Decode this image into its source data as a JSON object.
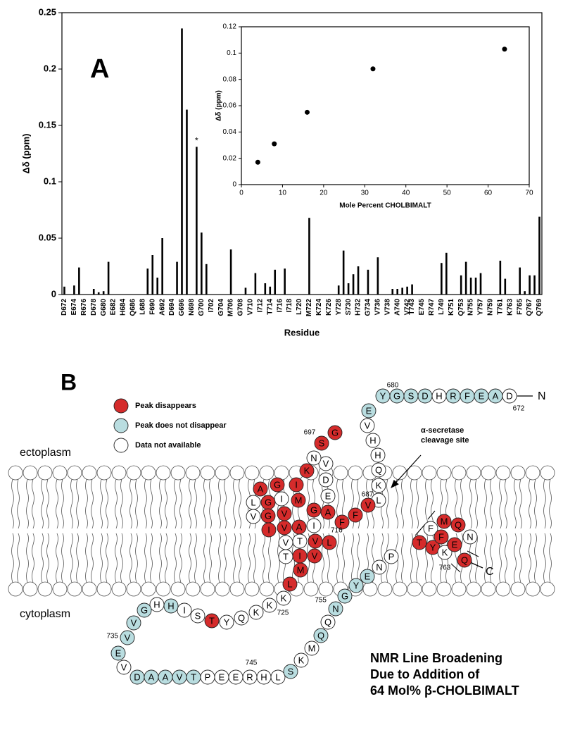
{
  "chart_data": [
    {
      "type": "bar",
      "panel_label": "A",
      "y_label": "Δδ (ppm)",
      "x_label": "Residue",
      "color": "#000000",
      "ylim": [
        0,
        0.25
      ],
      "yticks": [
        0,
        0.05,
        0.1,
        0.15,
        0.2,
        0.25
      ],
      "annotation": "*",
      "categories": [
        "D672",
        null,
        "E674",
        null,
        "R676",
        null,
        "D678",
        null,
        "G680",
        null,
        "E682",
        null,
        "H684",
        null,
        "Q686",
        null,
        "L688",
        null,
        "F690",
        null,
        "A692",
        null,
        "D694",
        null,
        "G696",
        null,
        "N698",
        null,
        "G700",
        null,
        "I702",
        null,
        "G704",
        null,
        "M706",
        null,
        "G708",
        null,
        "V710",
        null,
        "I712",
        null,
        "T714",
        null,
        "I716",
        null,
        "I718",
        null,
        "L720",
        null,
        "M722",
        null,
        "K724",
        null,
        "K726",
        null,
        "Y728",
        null,
        "S730",
        null,
        "H732",
        null,
        "G734",
        null,
        "V736",
        null,
        "V738",
        null,
        "A740",
        null,
        "V742",
        "T743",
        null,
        "E745",
        null,
        "R747",
        null,
        "L749",
        null,
        "K751",
        null,
        "Q753",
        null,
        "N755",
        null,
        "Y757",
        null,
        "N759",
        null,
        "T761",
        null,
        "K763",
        null,
        "F765",
        null,
        "Q767",
        null,
        "Q769"
      ],
      "values": [
        0.007,
        null,
        0.008,
        0.024,
        null,
        null,
        0.005,
        0.002,
        0.003,
        0.029,
        null,
        null,
        null,
        null,
        null,
        null,
        null,
        0.023,
        0.035,
        0.015,
        0.05,
        null,
        null,
        0.029,
        0.236,
        0.164,
        null,
        0.131,
        0.055,
        0.027,
        null,
        null,
        null,
        null,
        0.04,
        null,
        null,
        0.006,
        null,
        0.019,
        null,
        0.01,
        0.007,
        0.022,
        null,
        0.023,
        null,
        null,
        null,
        null,
        0.068,
        null,
        null,
        null,
        null,
        null,
        0.008,
        0.039,
        0.01,
        0.018,
        0.025,
        null,
        0.022,
        null,
        0.033,
        null,
        null,
        0.005,
        0.005,
        0.006,
        0.007,
        0.009,
        null,
        null,
        null,
        null,
        null,
        0.028,
        0.037,
        null,
        null,
        0.017,
        0.029,
        0.015,
        0.015,
        0.019,
        null,
        null,
        null,
        0.03,
        0.014,
        null,
        null,
        0.024,
        0.003,
        0.017,
        0.017,
        0.069
      ]
    },
    {
      "type": "scatter",
      "x_label": "Mole Percent CHOLBIMALT",
      "y_label": "Δδ (ppm)",
      "color": "#000000",
      "x": [
        4,
        8,
        16,
        32,
        64
      ],
      "values": [
        0.017,
        0.031,
        0.055,
        0.088,
        0.103
      ],
      "xlim": [
        0,
        70
      ],
      "xticks": [
        0,
        10,
        20,
        30,
        40,
        50,
        60,
        70
      ],
      "ylim": [
        0,
        0.12
      ],
      "yticks": [
        0,
        0.02,
        0.04,
        0.06,
        0.08,
        0.1,
        0.12
      ]
    }
  ],
  "diagram": {
    "panel_label": "B",
    "legend": [
      {
        "text": "Peak disappears",
        "color": "#d52b2b"
      },
      {
        "text": "Peak does not disappear",
        "color": "#b9dde0"
      },
      {
        "text": "Data not available",
        "color": "#ffffff"
      }
    ],
    "regions": [
      "ectoplasm",
      "cytoplasm"
    ],
    "n_terminus": "N",
    "c_terminus": "C",
    "annotation": [
      "α-secretase",
      "cleavage site"
    ],
    "caption": [
      "NMR Line Broadening",
      "Due to Addition of",
      "64 Mol% β-CHOLBIMALT"
    ],
    "position_labels": [
      "680",
      "672",
      "697",
      "687",
      "716",
      "725",
      "735",
      "745",
      "755",
      "763"
    ],
    "residues": [
      {
        "aa": "D",
        "color": "#ffffff"
      },
      {
        "aa": "A",
        "color": "#b9dde0"
      },
      {
        "aa": "E",
        "color": "#b9dde0"
      },
      {
        "aa": "F",
        "color": "#b9dde0"
      },
      {
        "aa": "R",
        "color": "#b9dde0"
      },
      {
        "aa": "H",
        "color": "#ffffff"
      },
      {
        "aa": "D",
        "color": "#b9dde0"
      },
      {
        "aa": "S",
        "color": "#b9dde0"
      },
      {
        "aa": "G",
        "color": "#b9dde0"
      },
      {
        "aa": "Y",
        "color": "#b9dde0"
      },
      {
        "aa": "E",
        "color": "#b9dde0"
      },
      {
        "aa": "V",
        "color": "#ffffff"
      },
      {
        "aa": "H",
        "color": "#ffffff"
      },
      {
        "aa": "H",
        "color": "#ffffff"
      },
      {
        "aa": "Q",
        "color": "#ffffff"
      },
      {
        "aa": "K",
        "color": "#ffffff"
      },
      {
        "aa": "L",
        "color": "#ffffff"
      },
      {
        "aa": "V",
        "color": "#d52b2b"
      },
      {
        "aa": "F",
        "color": "#d52b2b"
      },
      {
        "aa": "F",
        "color": "#d52b2b"
      },
      {
        "aa": "A",
        "color": "#d52b2b"
      },
      {
        "aa": "E",
        "color": "#ffffff"
      },
      {
        "aa": "D",
        "color": "#ffffff"
      },
      {
        "aa": "V",
        "color": "#ffffff"
      },
      {
        "aa": "G",
        "color": "#d52b2b"
      },
      {
        "aa": "S",
        "color": "#d52b2b"
      },
      {
        "aa": "N",
        "color": "#ffffff"
      },
      {
        "aa": "K",
        "color": "#d52b2b"
      },
      {
        "aa": "G",
        "color": "#d52b2b"
      },
      {
        "aa": "A",
        "color": "#d52b2b"
      },
      {
        "aa": "I",
        "color": "#d52b2b"
      },
      {
        "aa": "I",
        "color": "#ffffff"
      },
      {
        "aa": "G",
        "color": "#d52b2b"
      },
      {
        "aa": "L",
        "color": "#ffffff"
      },
      {
        "aa": "M",
        "color": "#d52b2b"
      },
      {
        "aa": "V",
        "color": "#d52b2b"
      },
      {
        "aa": "G",
        "color": "#d52b2b"
      },
      {
        "aa": "G",
        "color": "#d52b2b"
      },
      {
        "aa": "V",
        "color": "#ffffff"
      },
      {
        "aa": "V",
        "color": "#d52b2b"
      },
      {
        "aa": "I",
        "color": "#d52b2b"
      },
      {
        "aa": "A",
        "color": "#d52b2b"
      },
      {
        "aa": "T",
        "color": "#ffffff"
      },
      {
        "aa": "V",
        "color": "#d52b2b"
      },
      {
        "aa": "I",
        "color": "#ffffff"
      },
      {
        "aa": "V",
        "color": "#d52b2b"
      },
      {
        "aa": "I",
        "color": "#d52b2b"
      },
      {
        "aa": "T",
        "color": "#ffffff"
      },
      {
        "aa": "L",
        "color": "#d52b2b"
      },
      {
        "aa": "V",
        "color": "#ffffff"
      },
      {
        "aa": "M",
        "color": "#d52b2b"
      },
      {
        "aa": "L",
        "color": "#d52b2b"
      },
      {
        "aa": "K",
        "color": "#ffffff"
      },
      {
        "aa": "K",
        "color": "#ffffff"
      },
      {
        "aa": "K",
        "color": "#ffffff"
      },
      {
        "aa": "Q",
        "color": "#ffffff"
      },
      {
        "aa": "Y",
        "color": "#ffffff"
      },
      {
        "aa": "T",
        "color": "#d52b2b"
      },
      {
        "aa": "S",
        "color": "#ffffff"
      },
      {
        "aa": "I",
        "color": "#ffffff"
      },
      {
        "aa": "H",
        "color": "#b9dde0"
      },
      {
        "aa": "H",
        "color": "#ffffff"
      },
      {
        "aa": "G",
        "color": "#b9dde0"
      },
      {
        "aa": "V",
        "color": "#b9dde0"
      },
      {
        "aa": "V",
        "color": "#b9dde0"
      },
      {
        "aa": "E",
        "color": "#b9dde0"
      },
      {
        "aa": "V",
        "color": "#ffffff"
      },
      {
        "aa": "D",
        "color": "#b9dde0"
      },
      {
        "aa": "A",
        "color": "#b9dde0"
      },
      {
        "aa": "A",
        "color": "#b9dde0"
      },
      {
        "aa": "V",
        "color": "#b9dde0"
      },
      {
        "aa": "T",
        "color": "#b9dde0"
      },
      {
        "aa": "P",
        "color": "#ffffff"
      },
      {
        "aa": "E",
        "color": "#ffffff"
      },
      {
        "aa": "E",
        "color": "#ffffff"
      },
      {
        "aa": "R",
        "color": "#ffffff"
      },
      {
        "aa": "H",
        "color": "#ffffff"
      },
      {
        "aa": "L",
        "color": "#ffffff"
      },
      {
        "aa": "S",
        "color": "#b9dde0"
      },
      {
        "aa": "K",
        "color": "#ffffff"
      },
      {
        "aa": "M",
        "color": "#ffffff"
      },
      {
        "aa": "Q",
        "color": "#b9dde0"
      },
      {
        "aa": "Q",
        "color": "#ffffff"
      },
      {
        "aa": "N",
        "color": "#b9dde0"
      },
      {
        "aa": "G",
        "color": "#b9dde0"
      },
      {
        "aa": "Y",
        "color": "#b9dde0"
      },
      {
        "aa": "E",
        "color": "#b9dde0"
      },
      {
        "aa": "N",
        "color": "#ffffff"
      },
      {
        "aa": "P",
        "color": "#ffffff"
      },
      {
        "aa": "T",
        "color": "#d52b2b"
      },
      {
        "aa": "Y",
        "color": "#d52b2b"
      },
      {
        "aa": "K",
        "color": "#ffffff"
      },
      {
        "aa": "F",
        "color": "#ffffff"
      },
      {
        "aa": "F",
        "color": "#d52b2b"
      },
      {
        "aa": "E",
        "color": "#d52b2b"
      },
      {
        "aa": "Q",
        "color": "#d52b2b"
      },
      {
        "aa": "M",
        "color": "#d52b2b"
      },
      {
        "aa": "Q",
        "color": "#d52b2b"
      },
      {
        "aa": "N",
        "color": "#ffffff"
      }
    ]
  }
}
